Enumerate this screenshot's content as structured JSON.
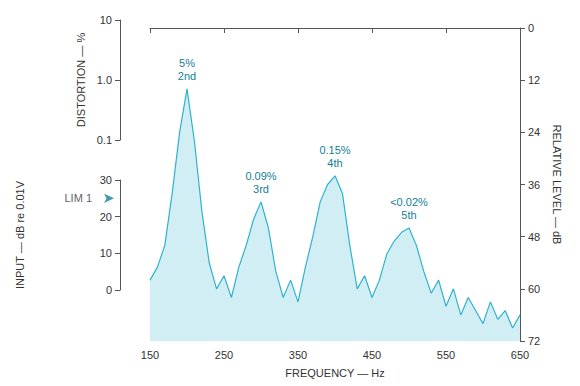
{
  "chart_data": {
    "type": "line",
    "color": "#2fb3cc",
    "xlabel": "FREQUENCY — Hz",
    "xlim": [
      150,
      650
    ],
    "xticks": [
      150,
      250,
      350,
      450,
      550,
      650
    ],
    "ylabel": "RELATIVE LEVEL — dB",
    "ylim": [
      0,
      72
    ],
    "yticks": [
      0,
      12,
      24,
      36,
      48,
      60,
      72
    ],
    "grid": false,
    "x": [
      150,
      160,
      170,
      180,
      190,
      200,
      210,
      220,
      230,
      240,
      250,
      260,
      270,
      280,
      290,
      300,
      310,
      320,
      330,
      340,
      350,
      360,
      370,
      380,
      390,
      400,
      410,
      420,
      430,
      440,
      450,
      460,
      470,
      480,
      490,
      500,
      510,
      520,
      530,
      540,
      550,
      560,
      570,
      580,
      590,
      600,
      610,
      620,
      630,
      640,
      650
    ],
    "values": [
      58,
      55,
      50,
      38,
      24,
      14,
      26,
      42,
      54,
      60,
      57,
      62,
      55,
      50,
      44,
      40,
      46,
      56,
      62,
      58,
      63,
      55,
      48,
      40,
      36,
      34,
      38,
      50,
      60,
      57,
      62,
      58,
      52,
      49,
      47,
      46,
      50,
      56,
      61,
      58,
      64,
      60,
      66,
      62,
      65,
      68,
      63,
      67,
      65,
      69,
      66
    ],
    "annotations": [
      {
        "text": "2nd",
        "distortion": "5%",
        "x": 200,
        "y": 14
      },
      {
        "text": "3rd",
        "distortion": "0.09%",
        "x": 300,
        "y": 40
      },
      {
        "text": "4th",
        "distortion": "0.15%",
        "x": 400,
        "y": 34
      },
      {
        "text": "5th",
        "distortion": "<0.02%",
        "x": 500,
        "y": 46
      },
      {
        "text": "LIM 1",
        "input": 25
      }
    ],
    "distortion_axis": {
      "label": "DISTORTION — %",
      "log": true,
      "lim": [
        0.1,
        10
      ],
      "ticks": [
        0.1,
        {
          "value": 1,
          "label": "1.0"
        },
        10
      ]
    },
    "input_axis": {
      "label": "INPUT — dB re 0.01V",
      "lim": [
        0,
        30
      ],
      "ticks": [
        0,
        10,
        20,
        30
      ]
    }
  }
}
